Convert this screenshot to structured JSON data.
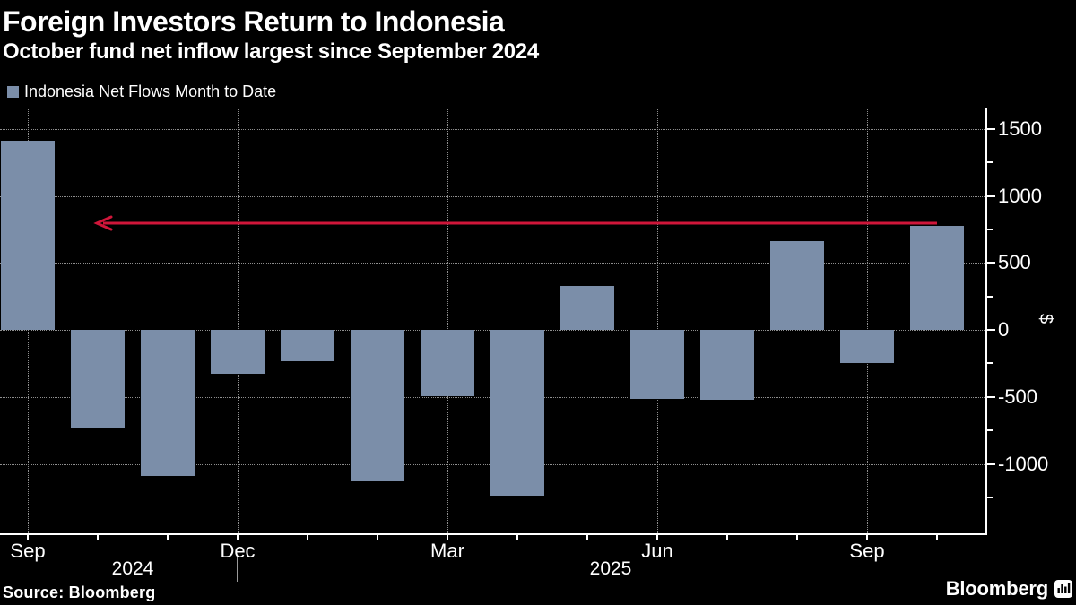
{
  "header": {
    "title": "Foreign Investors Return to Indonesia",
    "subtitle": "October fund net inflow largest since September 2024"
  },
  "legend": {
    "label": "Indonesia Net Flows Month to Date",
    "swatch_color": "#7B8EA9"
  },
  "footer": {
    "source": "Source: Bloomberg",
    "logo_text": "Bloomberg"
  },
  "chart_data": {
    "type": "bar",
    "title": "Foreign Investors Return to Indonesia",
    "subtitle": "October fund net inflow largest since September 2024",
    "series_name": "Indonesia Net Flows Month to Date",
    "categories": [
      "Sep 2024",
      "Oct 2024",
      "Nov 2024",
      "Dec 2024",
      "Jan 2025",
      "Feb 2025",
      "Mar 2025",
      "Apr 2025",
      "May 2025",
      "Jun 2025",
      "Jul 2025",
      "Aug 2025",
      "Sep 2025",
      "Oct 2025"
    ],
    "values": [
      1410,
      -730,
      -1090,
      -330,
      -235,
      -1130,
      -495,
      -1235,
      330,
      -515,
      -520,
      665,
      -245,
      775
    ],
    "bar_color": "#7B8EA9",
    "background": "#000000",
    "ylabel": "$",
    "grid": "dotted",
    "y_axis": {
      "side": "right",
      "major_ticks": [
        1500,
        1000,
        500,
        0,
        -500,
        -1000
      ],
      "minor_ticks": [
        1250,
        750,
        250,
        -250,
        -750,
        -1250
      ],
      "ylim": [
        -1520,
        1660
      ]
    },
    "x_axis": {
      "labeled_months": [
        {
          "index": 0,
          "label": "Sep"
        },
        {
          "index": 3,
          "label": "Dec"
        },
        {
          "index": 6,
          "label": "Mar"
        },
        {
          "index": 9,
          "label": "Jun"
        },
        {
          "index": 12,
          "label": "Sep"
        }
      ],
      "year_labels": [
        "2024",
        "2025"
      ]
    },
    "annotation": {
      "type": "arrow",
      "direction": "left",
      "value": 795,
      "from_index": 13,
      "to_index": 1,
      "color": "#D0163A"
    }
  }
}
